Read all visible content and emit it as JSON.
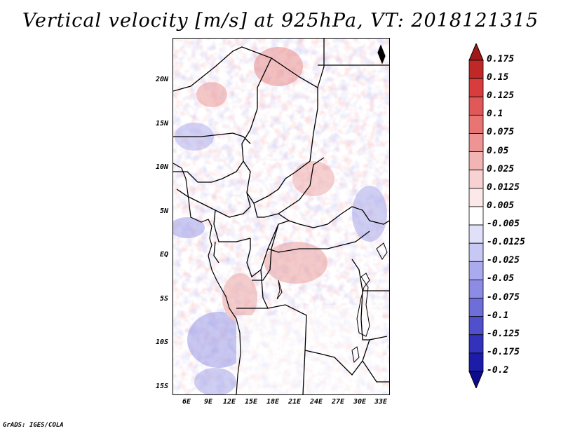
{
  "title": "Vertical velocity [m/s] at 925hPa, VT: 2018121315",
  "footer": "GrADS: IGES/COLA",
  "lat_labels": [
    "20N",
    "15N",
    "10N",
    "5N",
    "EQ",
    "5S",
    "10S",
    "15S"
  ],
  "lon_labels": [
    "6E",
    "9E",
    "12E",
    "15E",
    "18E",
    "21E",
    "24E",
    "27E",
    "30E",
    "33E"
  ],
  "colorbar": {
    "labels": [
      "0.175",
      "0.15",
      "0.125",
      "0.1",
      "0.075",
      "0.05",
      "0.025",
      "0.0125",
      "0.005",
      "-0.005",
      "-0.0125",
      "-0.025",
      "-0.05",
      "-0.075",
      "-0.1",
      "-0.125",
      "-0.175",
      "-0.2"
    ],
    "colors": [
      "#a01818",
      "#c02828",
      "#d83c3c",
      "#e05858",
      "#e87474",
      "#ee9494",
      "#f3b4b4",
      "#f8d2d2",
      "#fce8e8",
      "#ffffff",
      "#e0e0f8",
      "#c8c8f4",
      "#aaaaee",
      "#8c8ce4",
      "#6e6ed8",
      "#5050cc",
      "#3232bc",
      "#1c1ca8",
      "#0c0c8c"
    ]
  },
  "chart_data": {
    "type": "heatmap",
    "title": "Vertical velocity [m/s] at 925hPa, VT: 2018121315",
    "xlabel": "",
    "ylabel": "",
    "x_ticks": [
      "6E",
      "9E",
      "12E",
      "15E",
      "18E",
      "21E",
      "24E",
      "27E",
      "30E",
      "33E"
    ],
    "y_ticks": [
      "20N",
      "15N",
      "10N",
      "5N",
      "EQ",
      "5S",
      "10S",
      "15S"
    ],
    "xlim": [
      4,
      34
    ],
    "ylim": [
      -16,
      24
    ],
    "colorbar_levels": [
      -0.2,
      -0.175,
      -0.125,
      -0.1,
      -0.075,
      -0.05,
      -0.025,
      -0.0125,
      -0.005,
      0.005,
      0.0125,
      0.025,
      0.05,
      0.075,
      0.1,
      0.125,
      0.15,
      0.175
    ]
  }
}
